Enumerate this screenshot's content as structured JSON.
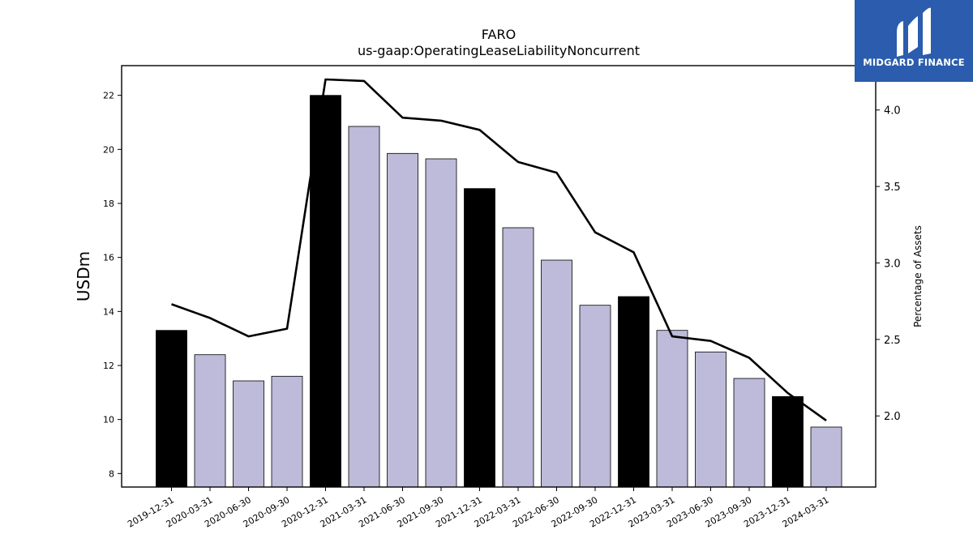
{
  "chart_data": {
    "type": "bar",
    "title": "FARO",
    "subtitle": "us-gaap:OperatingLeaseLiabilityNoncurrent",
    "ylabel": "USDm",
    "y2label": "Percentage of Assets",
    "categories": [
      "2019-12-31",
      "2020-03-31",
      "2020-06-30",
      "2020-09-30",
      "2020-12-31",
      "2021-03-31",
      "2021-06-30",
      "2021-09-30",
      "2021-12-31",
      "2022-03-31",
      "2022-06-30",
      "2022-09-30",
      "2022-12-31",
      "2023-03-31",
      "2023-06-30",
      "2023-09-30",
      "2023-12-31",
      "2024-03-31"
    ],
    "series": [
      {
        "type": "bar",
        "values": [
          13.3,
          12.4,
          11.43,
          11.6,
          22.0,
          20.85,
          19.85,
          19.65,
          18.55,
          17.1,
          15.9,
          14.23,
          14.55,
          13.3,
          12.5,
          11.52,
          10.85,
          9.72
        ]
      },
      {
        "type": "line",
        "axis": "right",
        "values": [
          2.73,
          2.64,
          2.52,
          2.57,
          4.2,
          4.19,
          3.95,
          3.93,
          3.87,
          3.66,
          3.59,
          3.2,
          3.07,
          2.52,
          2.49,
          2.38,
          2.15,
          1.97
        ]
      }
    ],
    "bar_colors": {
      "year_end": "#000000",
      "quarter": "#bdbbd9"
    },
    "ylim": [
      7.5,
      23.1
    ],
    "y2lim": [
      1.535,
      4.29
    ],
    "yticks": [
      8,
      10,
      12,
      14,
      16,
      18,
      20,
      22
    ],
    "y2ticks": [
      "2.0",
      "2.5",
      "3.0",
      "3.5",
      "4.0"
    ],
    "grid": false,
    "legend": "none"
  },
  "logo": {
    "text": "MIDGARD FINANCE",
    "color": "#2b5cad"
  }
}
